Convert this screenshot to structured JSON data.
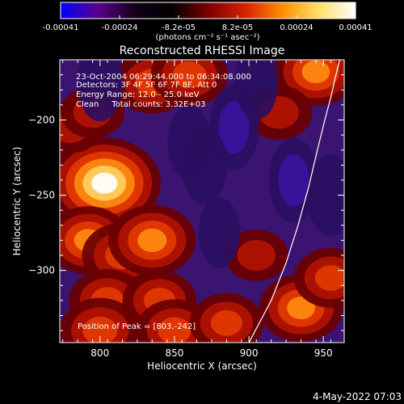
{
  "chart_data": {
    "type": "heatmap",
    "title": "Reconstructed RHESSI Image",
    "xlabel": "Heliocentric X (arcsec)",
    "ylabel": "Heliocentric Y (arcsec)",
    "xlim": [
      773,
      964
    ],
    "ylim": [
      -348,
      -160
    ],
    "x_ticks": [
      800,
      850,
      900,
      950
    ],
    "x_tick_labels": [
      "800",
      "850",
      "900",
      "950"
    ],
    "y_ticks": [
      -200,
      -250,
      -300
    ],
    "y_tick_labels": [
      "−200",
      "−250",
      "−300"
    ],
    "colorbar": {
      "range": [
        -0.00041,
        0.00041
      ],
      "tick_labels": [
        "-0.00041",
        "-0.00024",
        "-8.2e-05",
        "8.2e-05",
        "0.00024",
        "0.00041"
      ],
      "unit_label": "(photons cm⁻² s⁻¹ asec⁻²)",
      "colors": [
        "#0000ff",
        "#5a0090",
        "#140018",
        "#000000",
        "#7a0000",
        "#d62000",
        "#ff8c00",
        "#ffe066",
        "#ffffff"
      ]
    },
    "annotations": [
      "23-Oct-2004 06:29:44.000 to 06:34:08.000",
      "Detectors: 3F 4F 5F 6F 7F 8F, Att 0",
      "Energy Range: 12.0 - 25.0 keV",
      "Clean     Total counts: 3.32E+03"
    ],
    "peak_label": "Position of Peak = [803,-242]",
    "peak": {
      "x": 803,
      "y": -242
    },
    "limb_curve": {
      "x": [
        900,
        915,
        925,
        933,
        940,
        946,
        951,
        955,
        958,
        961
      ],
      "y": [
        -348,
        -320,
        -295,
        -270,
        -245,
        -220,
        -200,
        -185,
        -172,
        -160
      ]
    },
    "hot_spots": [
      {
        "x": 803,
        "y": -242,
        "value": 0.00041
      },
      {
        "x": 792,
        "y": -280,
        "value": 0.00024
      },
      {
        "x": 815,
        "y": -290,
        "value": 0.00022
      },
      {
        "x": 835,
        "y": -280,
        "value": 0.00026
      },
      {
        "x": 805,
        "y": -320,
        "value": 0.0002
      },
      {
        "x": 840,
        "y": -320,
        "value": 0.00018
      },
      {
        "x": 800,
        "y": -340,
        "value": 0.00022
      },
      {
        "x": 850,
        "y": -340,
        "value": 0.0002
      },
      {
        "x": 885,
        "y": -335,
        "value": 0.00018
      },
      {
        "x": 935,
        "y": -325,
        "value": 0.00024
      },
      {
        "x": 955,
        "y": -305,
        "value": 0.00018
      },
      {
        "x": 905,
        "y": -290,
        "value": 0.00012
      },
      {
        "x": 835,
        "y": -175,
        "value": 0.0002
      },
      {
        "x": 860,
        "y": -170,
        "value": 0.0002
      },
      {
        "x": 945,
        "y": -168,
        "value": 0.00024
      },
      {
        "x": 920,
        "y": -195,
        "value": 0.00014
      },
      {
        "x": 780,
        "y": -205,
        "value": 0.00012
      },
      {
        "x": 795,
        "y": -195,
        "value": 0.00012
      }
    ],
    "cold_spots": [
      {
        "x": 890,
        "y": -205,
        "value": -0.00016
      },
      {
        "x": 870,
        "y": -230,
        "value": -0.00012
      },
      {
        "x": 930,
        "y": -240,
        "value": -0.00016
      },
      {
        "x": 955,
        "y": -250,
        "value": -0.00014
      },
      {
        "x": 800,
        "y": -175,
        "value": -0.00012
      },
      {
        "x": 860,
        "y": -215,
        "value": -0.0001
      },
      {
        "x": 905,
        "y": -175,
        "value": -0.0001
      },
      {
        "x": 880,
        "y": -275,
        "value": -8e-05
      }
    ]
  },
  "footer": {
    "date": "4-May-2022 07:03"
  }
}
